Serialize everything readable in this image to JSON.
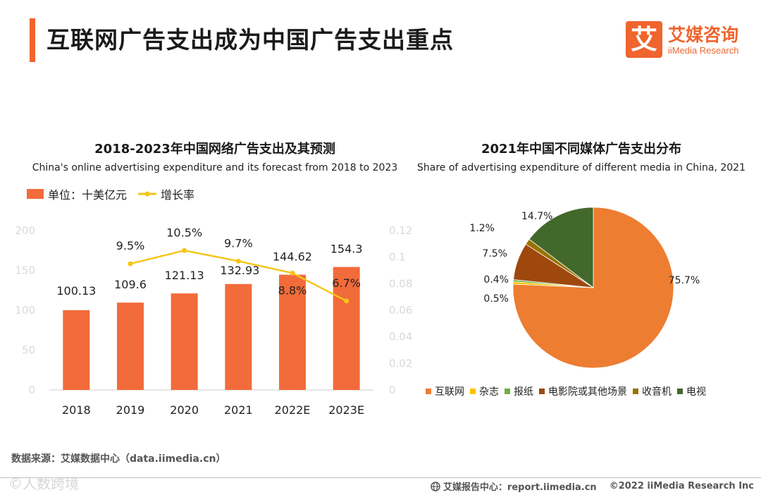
{
  "page": {
    "title": "互联网广告支出成为中国广告支出重点",
    "logo_mark": "艾",
    "logo_cn": "艾媒咨询",
    "logo_en": "iiMedia Research",
    "accent_color": "#f0642d"
  },
  "chart_data": [
    {
      "type": "bar",
      "title": "2018-2023年中国网络广告支出及其预测",
      "subtitle": "China's online advertising expenditure and its forecast from 2018 to 2023",
      "legend": [
        {
          "label": "单位：十美亿元",
          "kind": "bar",
          "color": "#f26b3a"
        },
        {
          "label": "增长率",
          "kind": "line",
          "color": "#f5c518"
        }
      ],
      "categories": [
        "2018",
        "2019",
        "2020",
        "2021",
        "2022E",
        "2023E"
      ],
      "series": [
        {
          "name": "单位：十美亿元",
          "kind": "bar",
          "values": [
            100.13,
            109.6,
            121.13,
            132.93,
            144.62,
            154.3
          ],
          "labels": [
            "100.13",
            "109.6",
            "121.13",
            "132.93",
            "144.62",
            "154.3"
          ]
        },
        {
          "name": "增长率",
          "kind": "line",
          "axis": "right",
          "x": [
            "2019",
            "2020",
            "2021",
            "2022E",
            "2023E"
          ],
          "values": [
            0.095,
            0.105,
            0.097,
            0.088,
            0.067
          ],
          "labels": [
            "9.5%",
            "10.5%",
            "9.7%",
            "8.8%",
            "6.7%"
          ]
        }
      ],
      "ylim": [
        0,
        200
      ],
      "yticks": [
        "0",
        "50",
        "100",
        "150",
        "200"
      ],
      "y2lim": [
        0,
        0.12
      ],
      "y2ticks": [
        "0",
        "0.02",
        "0.04",
        "0.06",
        "0.08",
        "0.1",
        "0.12"
      ],
      "xlabel": "",
      "ylabel": ""
    },
    {
      "type": "pie",
      "title": "2021年中国不同媒体广告支出分布",
      "subtitle": "Share of advertising expenditure of different media in China, 2021",
      "slices": [
        {
          "label": "互联网",
          "value": 75.7,
          "text": "75.7%",
          "color": "#ed7d31"
        },
        {
          "label": "杂志",
          "value": 0.5,
          "text": "0.5%",
          "color": "#ffc000"
        },
        {
          "label": "报纸",
          "value": 0.4,
          "text": "0.4%",
          "color": "#70ad47"
        },
        {
          "label": "电影院或其他场景",
          "value": 7.5,
          "text": "7.5%",
          "color": "#9e480e"
        },
        {
          "label": "收音机",
          "value": 1.2,
          "text": "1.2%",
          "color": "#997300"
        },
        {
          "label": "电视",
          "value": 14.7,
          "text": "14.7%",
          "color": "#43682b"
        }
      ],
      "legend_position": "bottom"
    }
  ],
  "footer": {
    "source": "数据来源：艾媒数据中心（data.iimedia.cn）",
    "report": "艾媒报告中心：report.iimedia.cn",
    "copyright": "©2022  iiMedia Research  Inc",
    "watermark": "©人数跨境"
  }
}
